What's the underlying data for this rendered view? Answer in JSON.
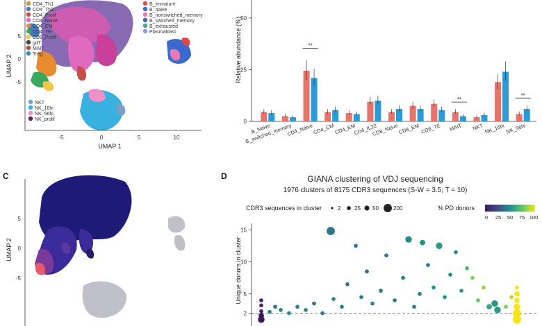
{
  "panel_letters": {
    "c": "C",
    "d": "D"
  },
  "umap_a": {
    "xlabel": "UMAP 1",
    "ylabel": "UMAP 2",
    "xticks": [
      "-5",
      "0",
      "5",
      "10"
    ],
    "yticks": [
      "5",
      "0",
      "-5"
    ],
    "legend1": [
      {
        "label": "CD4_Th1",
        "color": "#c49a3a"
      },
      {
        "label": "CD4_Th2",
        "color": "#4a7ab8"
      },
      {
        "label": "CD4_Prolif",
        "color": "#c8504a"
      },
      {
        "label": "CD4_Naive",
        "color": "#e06ac0"
      },
      {
        "label": "CD4_EM",
        "color": "#e88a30"
      },
      {
        "label": "CD4_TE",
        "color": "#3aa85a"
      },
      {
        "label": "CD8_Prolif",
        "color": "#f2c84b"
      },
      {
        "label": "gdT",
        "color": "#444444"
      },
      {
        "label": "MAIT",
        "color": "#b05040"
      },
      {
        "label": "Treg",
        "color": "#3a8ac8"
      }
    ],
    "legend2": [
      {
        "label": "B_immature",
        "color": "#e04848"
      },
      {
        "label": "B_naive",
        "color": "#3a6ad0"
      },
      {
        "label": "B_nonswitched_memory",
        "color": "#e87ab8"
      },
      {
        "label": "B_switched_memory",
        "color": "#5a5aa8"
      },
      {
        "label": "B_exhausted",
        "color": "#3ab090"
      },
      {
        "label": "Plasmablast",
        "color": "#8a9ae0"
      }
    ],
    "legend3": [
      {
        "label": "NKT",
        "color": "#7aa0c8"
      },
      {
        "label": "NK_16hi",
        "color": "#38b0e0"
      },
      {
        "label": "NK_56hi",
        "color": "#f090c8"
      },
      {
        "label": "NK_prolif",
        "color": "#502860"
      }
    ]
  },
  "chart_data": [
    {
      "type": "bar",
      "ylabel": "Relative abundance (%)",
      "yticks": [
        "0",
        "25",
        "50"
      ],
      "ylim": [
        0,
        58
      ],
      "categories": [
        "B_Naive",
        "B_switched_memory",
        "CD4_Naive",
        "CD4_CM",
        "CD4_EM",
        "CD4_IL22",
        "CD8_Naive",
        "CD8_EM",
        "CD8_TE",
        "MAIT",
        "NKT",
        "NK_16hi",
        "NK_56hi"
      ],
      "series": [
        {
          "color": "#e8736a",
          "values": [
            4.5,
            2.5,
            24.5,
            4.5,
            4,
            9.5,
            4.5,
            7.5,
            8.5,
            4.5,
            2,
            19,
            3.5
          ]
        },
        {
          "color": "#2b9bd8",
          "values": [
            4,
            2,
            21,
            5.5,
            3.5,
            10,
            6,
            6,
            5.5,
            2.5,
            3,
            24,
            6
          ]
        }
      ],
      "significance": [
        {
          "category": "CD4_Naive",
          "label": "**"
        },
        {
          "category": "MAIT",
          "label": "**"
        },
        {
          "category": "NK_56hi",
          "label": "**"
        }
      ]
    },
    {
      "type": "scatter",
      "title": "GIANA clustering of VDJ sequencing",
      "subtitle": "1976 clusters of 8175 CDR3 sequences (S-W = 3.5; T = 10)",
      "size_legend_label": "CDR3 sequences in cluster",
      "size_legend": [
        "2",
        "25",
        "50",
        "200"
      ],
      "color_legend_label": "% PD donors",
      "color_ticks": [
        "0",
        "25",
        "50",
        "75",
        "100"
      ],
      "ylabel": "Unique donors in cluster",
      "yticks": [
        "2",
        "5",
        "10",
        "15"
      ],
      "ylim": [
        0,
        16
      ],
      "reference_line_y": 2,
      "points": [
        {
          "x": 0.02,
          "y": 1.0,
          "size": 14,
          "pd": 0
        },
        {
          "x": 0.02,
          "y": 1.6,
          "size": 8,
          "pd": 0
        },
        {
          "x": 0.02,
          "y": 2.3,
          "size": 3,
          "pd": 5
        },
        {
          "x": 0.02,
          "y": 3.2,
          "size": 3,
          "pd": 10
        },
        {
          "x": 0.02,
          "y": 4.0,
          "size": 3,
          "pd": 5
        },
        {
          "x": 0.05,
          "y": 2.2,
          "size": 3,
          "pd": 45
        },
        {
          "x": 0.07,
          "y": 3.0,
          "size": 3,
          "pd": 40
        },
        {
          "x": 0.09,
          "y": 2.5,
          "size": 3,
          "pd": 45
        },
        {
          "x": 0.12,
          "y": 2.0,
          "size": 3,
          "pd": 50
        },
        {
          "x": 0.15,
          "y": 3.0,
          "size": 3,
          "pd": 45
        },
        {
          "x": 0.18,
          "y": 2.5,
          "size": 3,
          "pd": 45
        },
        {
          "x": 0.21,
          "y": 3.5,
          "size": 3,
          "pd": 40
        },
        {
          "x": 0.24,
          "y": 2.0,
          "size": 3,
          "pd": 45
        },
        {
          "x": 0.27,
          "y": 14.8,
          "size": 25,
          "pd": 40
        },
        {
          "x": 0.28,
          "y": 4.2,
          "size": 3,
          "pd": 45
        },
        {
          "x": 0.31,
          "y": 3.0,
          "size": 3,
          "pd": 45
        },
        {
          "x": 0.33,
          "y": 6.5,
          "size": 3,
          "pd": 40
        },
        {
          "x": 0.36,
          "y": 12.5,
          "size": 3,
          "pd": 40
        },
        {
          "x": 0.38,
          "y": 4.5,
          "size": 3,
          "pd": 45
        },
        {
          "x": 0.4,
          "y": 8.5,
          "size": 3,
          "pd": 35
        },
        {
          "x": 0.42,
          "y": 3.5,
          "size": 3,
          "pd": 45
        },
        {
          "x": 0.45,
          "y": 5.5,
          "size": 3,
          "pd": 40
        },
        {
          "x": 0.47,
          "y": 11.0,
          "size": 3,
          "pd": 40
        },
        {
          "x": 0.5,
          "y": 4.0,
          "size": 3,
          "pd": 40
        },
        {
          "x": 0.53,
          "y": 7.5,
          "size": 3,
          "pd": 45
        },
        {
          "x": 0.55,
          "y": 13.5,
          "size": 14,
          "pd": 50
        },
        {
          "x": 0.57,
          "y": 3.0,
          "size": 3,
          "pd": 45
        },
        {
          "x": 0.59,
          "y": 5.0,
          "size": 3,
          "pd": 45
        },
        {
          "x": 0.6,
          "y": 13.0,
          "size": 8,
          "pd": 50
        },
        {
          "x": 0.62,
          "y": 9.5,
          "size": 3,
          "pd": 45
        },
        {
          "x": 0.64,
          "y": 6.0,
          "size": 3,
          "pd": 50
        },
        {
          "x": 0.66,
          "y": 12.5,
          "size": 14,
          "pd": 55
        },
        {
          "x": 0.68,
          "y": 4.5,
          "size": 3,
          "pd": 50
        },
        {
          "x": 0.7,
          "y": 8.0,
          "size": 3,
          "pd": 50
        },
        {
          "x": 0.72,
          "y": 11.5,
          "size": 3,
          "pd": 50
        },
        {
          "x": 0.74,
          "y": 5.5,
          "size": 3,
          "pd": 55
        },
        {
          "x": 0.76,
          "y": 9.0,
          "size": 3,
          "pd": 65
        },
        {
          "x": 0.78,
          "y": 7.5,
          "size": 3,
          "pd": 80
        },
        {
          "x": 0.8,
          "y": 4.0,
          "size": 3,
          "pd": 75
        },
        {
          "x": 0.82,
          "y": 6.0,
          "size": 3,
          "pd": 85
        },
        {
          "x": 0.84,
          "y": 3.0,
          "size": 8,
          "pd": 60
        },
        {
          "x": 0.86,
          "y": 3.5,
          "size": 14,
          "pd": 55
        },
        {
          "x": 0.87,
          "y": 2.5,
          "size": 14,
          "pd": 55
        },
        {
          "x": 0.9,
          "y": 3.0,
          "size": 3,
          "pd": 80
        },
        {
          "x": 0.92,
          "y": 4.5,
          "size": 3,
          "pd": 90
        },
        {
          "x": 0.94,
          "y": 1.0,
          "size": 25,
          "pd": 100
        },
        {
          "x": 0.94,
          "y": 2.0,
          "size": 25,
          "pd": 100
        },
        {
          "x": 0.94,
          "y": 3.0,
          "size": 14,
          "pd": 100
        },
        {
          "x": 0.94,
          "y": 4.0,
          "size": 8,
          "pd": 100
        },
        {
          "x": 0.94,
          "y": 5.0,
          "size": 8,
          "pd": 100
        },
        {
          "x": 0.94,
          "y": 6.0,
          "size": 3,
          "pd": 100
        }
      ]
    }
  ]
}
